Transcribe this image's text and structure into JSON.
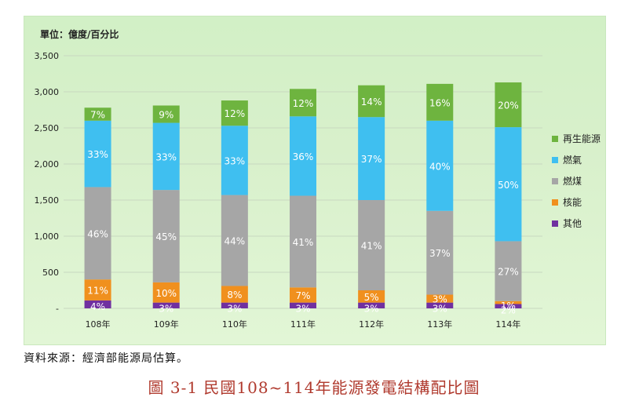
{
  "chart_data": {
    "type": "bar",
    "stacked": true,
    "unit_label": "單位：億度/百分比",
    "categories": [
      "108年",
      "109年",
      "110年",
      "111年",
      "112年",
      "113年",
      "114年"
    ],
    "totals": [
      2780,
      2810,
      2880,
      3040,
      3090,
      3110,
      3130
    ],
    "series": [
      {
        "name": "其他",
        "color": "#7030a0",
        "labels": [
          "4%",
          "3%",
          "3%",
          "3%",
          "3%",
          "3%",
          "2%"
        ]
      },
      {
        "name": "核能",
        "color": "#f0901e",
        "labels": [
          "11%",
          "10%",
          "8%",
          "7%",
          "5%",
          "3%",
          "1%"
        ]
      },
      {
        "name": "燃煤",
        "color": "#a6a6a6",
        "labels": [
          "46%",
          "45%",
          "44%",
          "41%",
          "41%",
          "37%",
          "27%"
        ]
      },
      {
        "name": "燃氣",
        "color": "#3fbff0",
        "labels": [
          "33%",
          "33%",
          "33%",
          "36%",
          "37%",
          "40%",
          "50%"
        ]
      },
      {
        "name": "再生能源",
        "color": "#6eb43f",
        "labels": [
          "7%",
          "9%",
          "12%",
          "12%",
          "14%",
          "16%",
          "20%"
        ]
      }
    ],
    "segment_values": [
      [
        110,
        80,
        80,
        80,
        80,
        80,
        60
      ],
      [
        290,
        280,
        230,
        210,
        170,
        110,
        40
      ],
      [
        1280,
        1280,
        1260,
        1270,
        1250,
        1160,
        830
      ],
      [
        920,
        930,
        960,
        1100,
        1150,
        1250,
        1580
      ],
      [
        180,
        240,
        350,
        380,
        440,
        510,
        620
      ]
    ],
    "y_ticks": [
      "-",
      "500",
      "1,000",
      "1,500",
      "2,000",
      "2,500",
      "3,000",
      "3,500"
    ],
    "ylim": [
      0,
      3500
    ],
    "grid": true,
    "legend_position": "right",
    "legend_order": [
      "再生能源",
      "燃氣",
      "燃煤",
      "核能",
      "其他"
    ]
  },
  "source_note": "資料來源：經濟部能源局估算。",
  "figure_caption": "圖  3-1    民國108~114年能源發電結構配比圖"
}
